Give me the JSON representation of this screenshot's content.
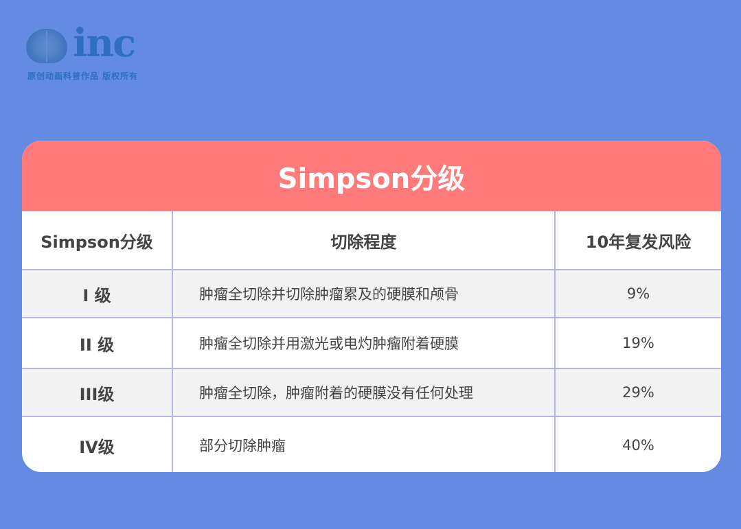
{
  "logo": {
    "wordmark": "inc",
    "subtitle": "原创动画科普作品 版权所有"
  },
  "title": "Simpson分级",
  "table": {
    "headers": [
      "Simpson分级",
      "切除程度",
      "10年复发风险"
    ],
    "rows": [
      {
        "grade": "I 级",
        "extent": "肿瘤全切除并切除肿瘤累及的硬膜和颅骨",
        "risk": "9%"
      },
      {
        "grade": "II 级",
        "extent": "肿瘤全切除并用激光或电灼肿瘤附着硬膜",
        "risk": "19%"
      },
      {
        "grade": "III级",
        "extent": "肿瘤全切除，肿瘤附着的硬膜没有任何处理",
        "risk": "29%"
      },
      {
        "grade": "IV级",
        "extent": "部分切除肿瘤",
        "risk": "40%"
      }
    ]
  },
  "colors": {
    "background": "#638be1",
    "header": "#ff7a7a",
    "border": "#b4b6e2"
  }
}
